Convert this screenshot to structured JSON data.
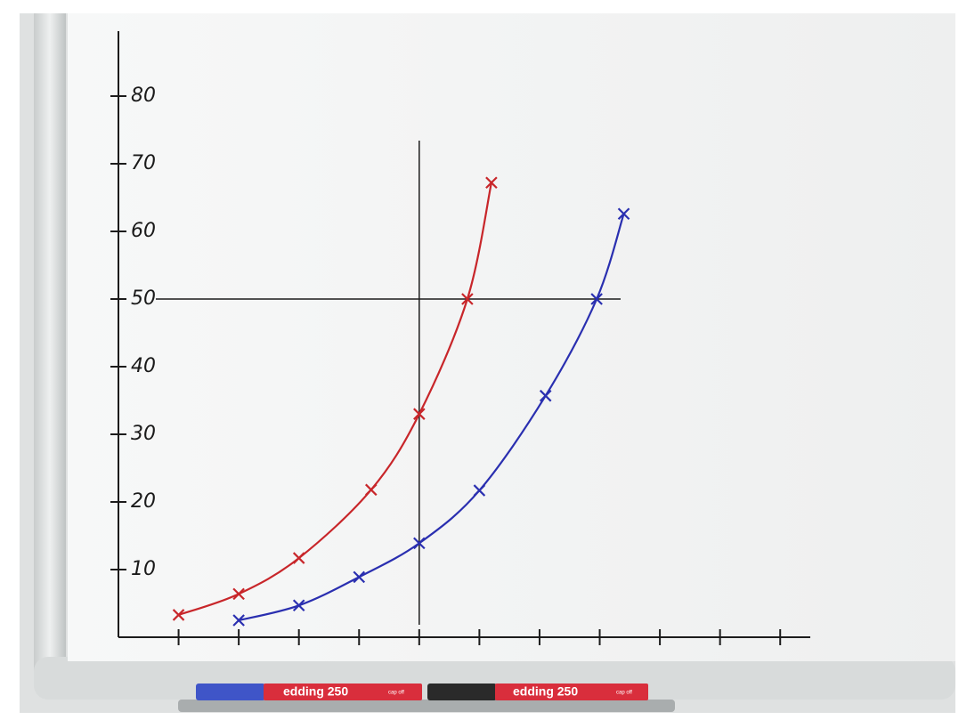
{
  "chart_data": {
    "type": "line",
    "xlim": [
      0,
      11.5
    ],
    "xticks": [
      1,
      2,
      3,
      4,
      5,
      6,
      7,
      8,
      9,
      10,
      11
    ],
    "ylim": [
      0,
      90
    ],
    "yticks": [
      10,
      20,
      30,
      40,
      50,
      60,
      70,
      80
    ],
    "vlines": [
      5
    ],
    "hlines": [
      50
    ],
    "series": [
      {
        "color": "#c8262a",
        "x": [
          1,
          2,
          3,
          4.2,
          5,
          5.8,
          6.2
        ],
        "values": [
          3.3,
          6.4,
          11.7,
          21.8,
          33,
          50,
          67.2
        ]
      },
      {
        "color": "#2a2fb0",
        "x": [
          2,
          3,
          4,
          5,
          6,
          7.1,
          7.95,
          8.4
        ],
        "values": [
          2.5,
          4.7,
          8.9,
          13.9,
          21.7,
          35.7,
          50,
          62.6
        ]
      }
    ]
  },
  "pens": [
    {
      "label": "edding 250",
      "note": "cap off"
    },
    {
      "label": "edding 250",
      "note": "cap off"
    }
  ]
}
